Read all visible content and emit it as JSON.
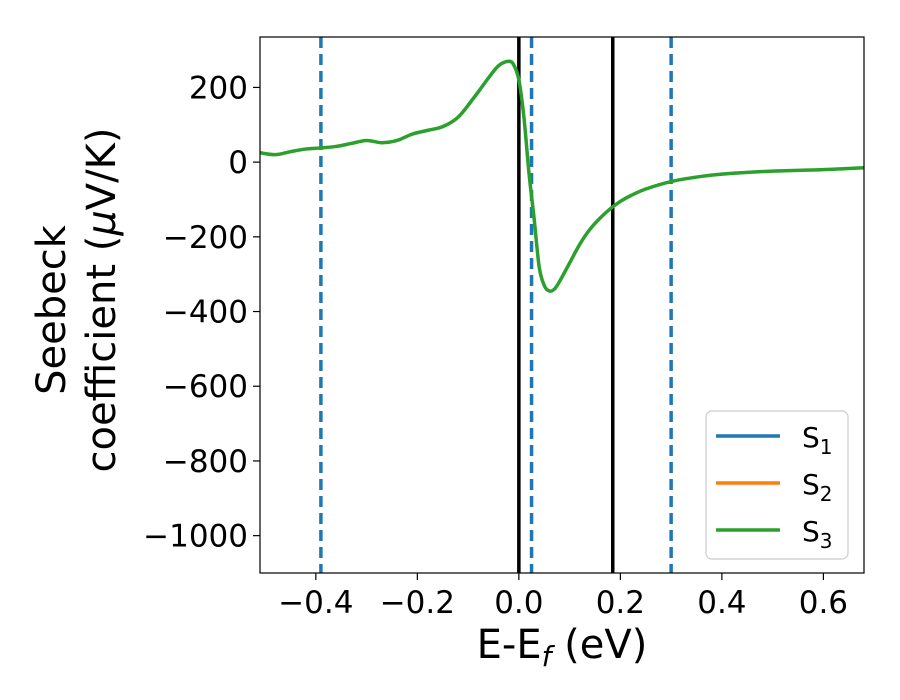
{
  "chart_data": {
    "type": "line",
    "xlabel": "E-E",
    "xlabel_sub": "f",
    "xlabel_unit": " (eV)",
    "ylabel_line1": "Seebeck",
    "ylabel_line2": "coefficient  (",
    "ylabel_mu": "μ",
    "ylabel_unit": "V/K)",
    "xlim": [
      -0.51,
      0.68
    ],
    "ylim": [
      -1100,
      335
    ],
    "xticks": [
      -0.4,
      -0.2,
      0.0,
      0.2,
      0.4,
      0.6
    ],
    "xtick_labels": [
      "−0.4",
      "−0.2",
      "0.0",
      "0.2",
      "0.4",
      "0.6"
    ],
    "yticks": [
      200,
      0,
      -200,
      -400,
      -600,
      -800,
      -1000
    ],
    "ytick_labels": [
      "200",
      "0",
      "−200",
      "−400",
      "−600",
      "−800",
      "−1000"
    ],
    "grid": false,
    "legend_position": "bottom-right",
    "vlines_solid": [
      0.0,
      0.185
    ],
    "vlines_dashed": [
      -0.39,
      0.025,
      0.3
    ],
    "series": [
      {
        "name": "S",
        "sub": "1",
        "color": "#1f77b4",
        "x": [],
        "y": []
      },
      {
        "name": "S",
        "sub": "2",
        "color": "#ff7f0e",
        "x": [],
        "y": []
      },
      {
        "name": "S",
        "sub": "3",
        "color": "#2ca02c",
        "x": [
          -0.51,
          -0.48,
          -0.45,
          -0.42,
          -0.39,
          -0.36,
          -0.33,
          -0.3,
          -0.27,
          -0.24,
          -0.21,
          -0.18,
          -0.15,
          -0.12,
          -0.09,
          -0.06,
          -0.04,
          -0.02,
          -0.01,
          0.0,
          0.01,
          0.02,
          0.03,
          0.04,
          0.05,
          0.06,
          0.07,
          0.08,
          0.1,
          0.12,
          0.14,
          0.16,
          0.18,
          0.2,
          0.22,
          0.25,
          0.3,
          0.35,
          0.4,
          0.5,
          0.6,
          0.68
        ],
        "y": [
          25,
          20,
          28,
          35,
          38,
          42,
          50,
          58,
          52,
          58,
          75,
          85,
          95,
          120,
          170,
          225,
          258,
          270,
          260,
          220,
          120,
          -30,
          -150,
          -280,
          -330,
          -345,
          -340,
          -320,
          -270,
          -220,
          -180,
          -150,
          -125,
          -105,
          -90,
          -72,
          -52,
          -40,
          -32,
          -24,
          -20,
          -15
        ]
      }
    ],
    "vline_colors": {
      "solid": "#000000",
      "dashed": "#1f77b4"
    }
  }
}
